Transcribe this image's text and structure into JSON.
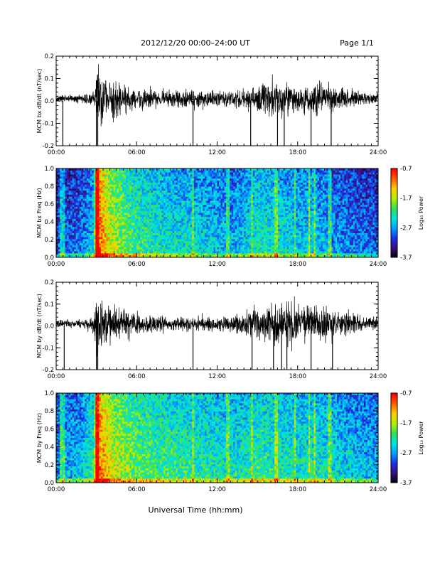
{
  "header": {
    "title": "2012/12/20  00:00–24:00 UT",
    "page": "Page 1/1"
  },
  "x_axis": {
    "label": "Universal Time (hh:mm)",
    "ticks": [
      "00:00",
      "06:00",
      "12:00",
      "18:00",
      "24:00"
    ],
    "range_hours": [
      0,
      24
    ]
  },
  "colors": {
    "trace": "#000000",
    "colormap": [
      "#000000",
      "#3b0f7a",
      "#1e2ee8",
      "#00a0ff",
      "#00e6e0",
      "#30e060",
      "#b4f000",
      "#ffd000",
      "#ff6000",
      "#ff0000"
    ]
  },
  "colorbar": {
    "label": "Log₁₀ Power",
    "ticks": [
      "-0.7",
      "-1.7",
      "-2.7",
      "-3.7"
    ],
    "range": [
      -3.7,
      -0.7
    ]
  },
  "chart_data": [
    {
      "type": "line",
      "title": "",
      "ylabel": "MCM bx dB/dt (nT/sec)",
      "xlabel": "",
      "ylim": [
        -0.2,
        0.2
      ],
      "yticks": [
        "0.2",
        "0.1",
        "0.0",
        "-0.1",
        "-0.2"
      ],
      "envelope": {
        "hours": [
          0,
          0.5,
          1,
          2,
          2.8,
          3.0,
          3.5,
          4,
          5,
          6,
          8,
          9,
          10,
          12,
          13,
          14,
          15,
          16,
          17,
          18,
          19,
          20,
          21,
          22,
          23,
          24
        ],
        "amplitude": [
          0.02,
          0.025,
          0.025,
          0.03,
          0.05,
          0.2,
          0.15,
          0.12,
          0.1,
          0.07,
          0.05,
          0.06,
          0.06,
          0.05,
          0.05,
          0.06,
          0.1,
          0.12,
          0.11,
          0.09,
          0.1,
          0.11,
          0.08,
          0.07,
          0.04,
          0.03
        ]
      },
      "spikes_hours": [
        0.5,
        3.0,
        3.1,
        10.2,
        14.5,
        16.5,
        17.0,
        19.0,
        20.5
      ]
    },
    {
      "type": "heatmap",
      "title": "",
      "ylabel": "MCM bx Freq (Hz)",
      "xlabel": "",
      "ylim": [
        0.0,
        1.0
      ],
      "yticks": [
        "1.0",
        "0.8",
        "0.6",
        "0.4",
        "0.2",
        "0.0"
      ],
      "value_range": [
        -3.7,
        -0.7
      ],
      "activity": {
        "hours": [
          0,
          0.5,
          1,
          2,
          2.8,
          3.0,
          3.5,
          4,
          5,
          6,
          8,
          10,
          12,
          13,
          14,
          15,
          16,
          17,
          18,
          19,
          20,
          21,
          22,
          23,
          24
        ],
        "level": [
          0.25,
          0.3,
          0.28,
          0.32,
          0.45,
          0.95,
          0.85,
          0.72,
          0.62,
          0.55,
          0.48,
          0.45,
          0.42,
          0.38,
          0.42,
          0.5,
          0.48,
          0.45,
          0.42,
          0.45,
          0.4,
          0.35,
          0.32,
          0.3,
          0.28
        ]
      },
      "bright_lines_hours": [
        0.4,
        0.6,
        3.0,
        3.1,
        10.2,
        12.8,
        14.6,
        16.4,
        17.8,
        18.9,
        19.3,
        20.4
      ]
    },
    {
      "type": "line",
      "title": "",
      "ylabel": "MCM by dB/dt (nT/sec)",
      "xlabel": "",
      "ylim": [
        -0.2,
        0.2
      ],
      "yticks": [
        "0.2",
        "0.1",
        "0.0",
        "-0.1",
        "-0.2"
      ],
      "envelope": {
        "hours": [
          0,
          0.5,
          1,
          2,
          2.8,
          3.0,
          3.5,
          4,
          5,
          6,
          8,
          10,
          12,
          13,
          14,
          15,
          16,
          17,
          18,
          19,
          20,
          21,
          22,
          23,
          24
        ],
        "amplitude": [
          0.02,
          0.03,
          0.025,
          0.03,
          0.06,
          0.2,
          0.15,
          0.12,
          0.1,
          0.07,
          0.05,
          0.05,
          0.05,
          0.06,
          0.08,
          0.1,
          0.14,
          0.15,
          0.12,
          0.1,
          0.12,
          0.08,
          0.07,
          0.05,
          0.04
        ]
      },
      "spikes_hours": [
        0.6,
        3.0,
        3.1,
        10.2,
        14.6,
        16.2,
        16.8,
        17.2,
        19.0,
        20.6
      ]
    },
    {
      "type": "heatmap",
      "title": "",
      "ylabel": "MCM by Freq (Hz)",
      "xlabel": "",
      "ylim": [
        0.0,
        1.0
      ],
      "yticks": [
        "1.0",
        "0.8",
        "0.6",
        "0.4",
        "0.2",
        "0.0"
      ],
      "value_range": [
        -3.7,
        -0.7
      ],
      "activity": {
        "hours": [
          0,
          0.5,
          1,
          2,
          2.8,
          3.0,
          3.5,
          4,
          5,
          6,
          8,
          10,
          12,
          13,
          14,
          15,
          16,
          17,
          18,
          19,
          20,
          21,
          22,
          23,
          24
        ],
        "level": [
          0.35,
          0.4,
          0.38,
          0.42,
          0.55,
          0.95,
          0.85,
          0.75,
          0.66,
          0.6,
          0.55,
          0.52,
          0.5,
          0.48,
          0.5,
          0.55,
          0.52,
          0.5,
          0.48,
          0.5,
          0.48,
          0.45,
          0.42,
          0.4,
          0.38
        ]
      },
      "bright_lines_hours": [
        0.4,
        0.6,
        3.0,
        3.1,
        10.2,
        12.8,
        14.6,
        16.4,
        17.8,
        18.9,
        19.3,
        20.4
      ]
    }
  ]
}
